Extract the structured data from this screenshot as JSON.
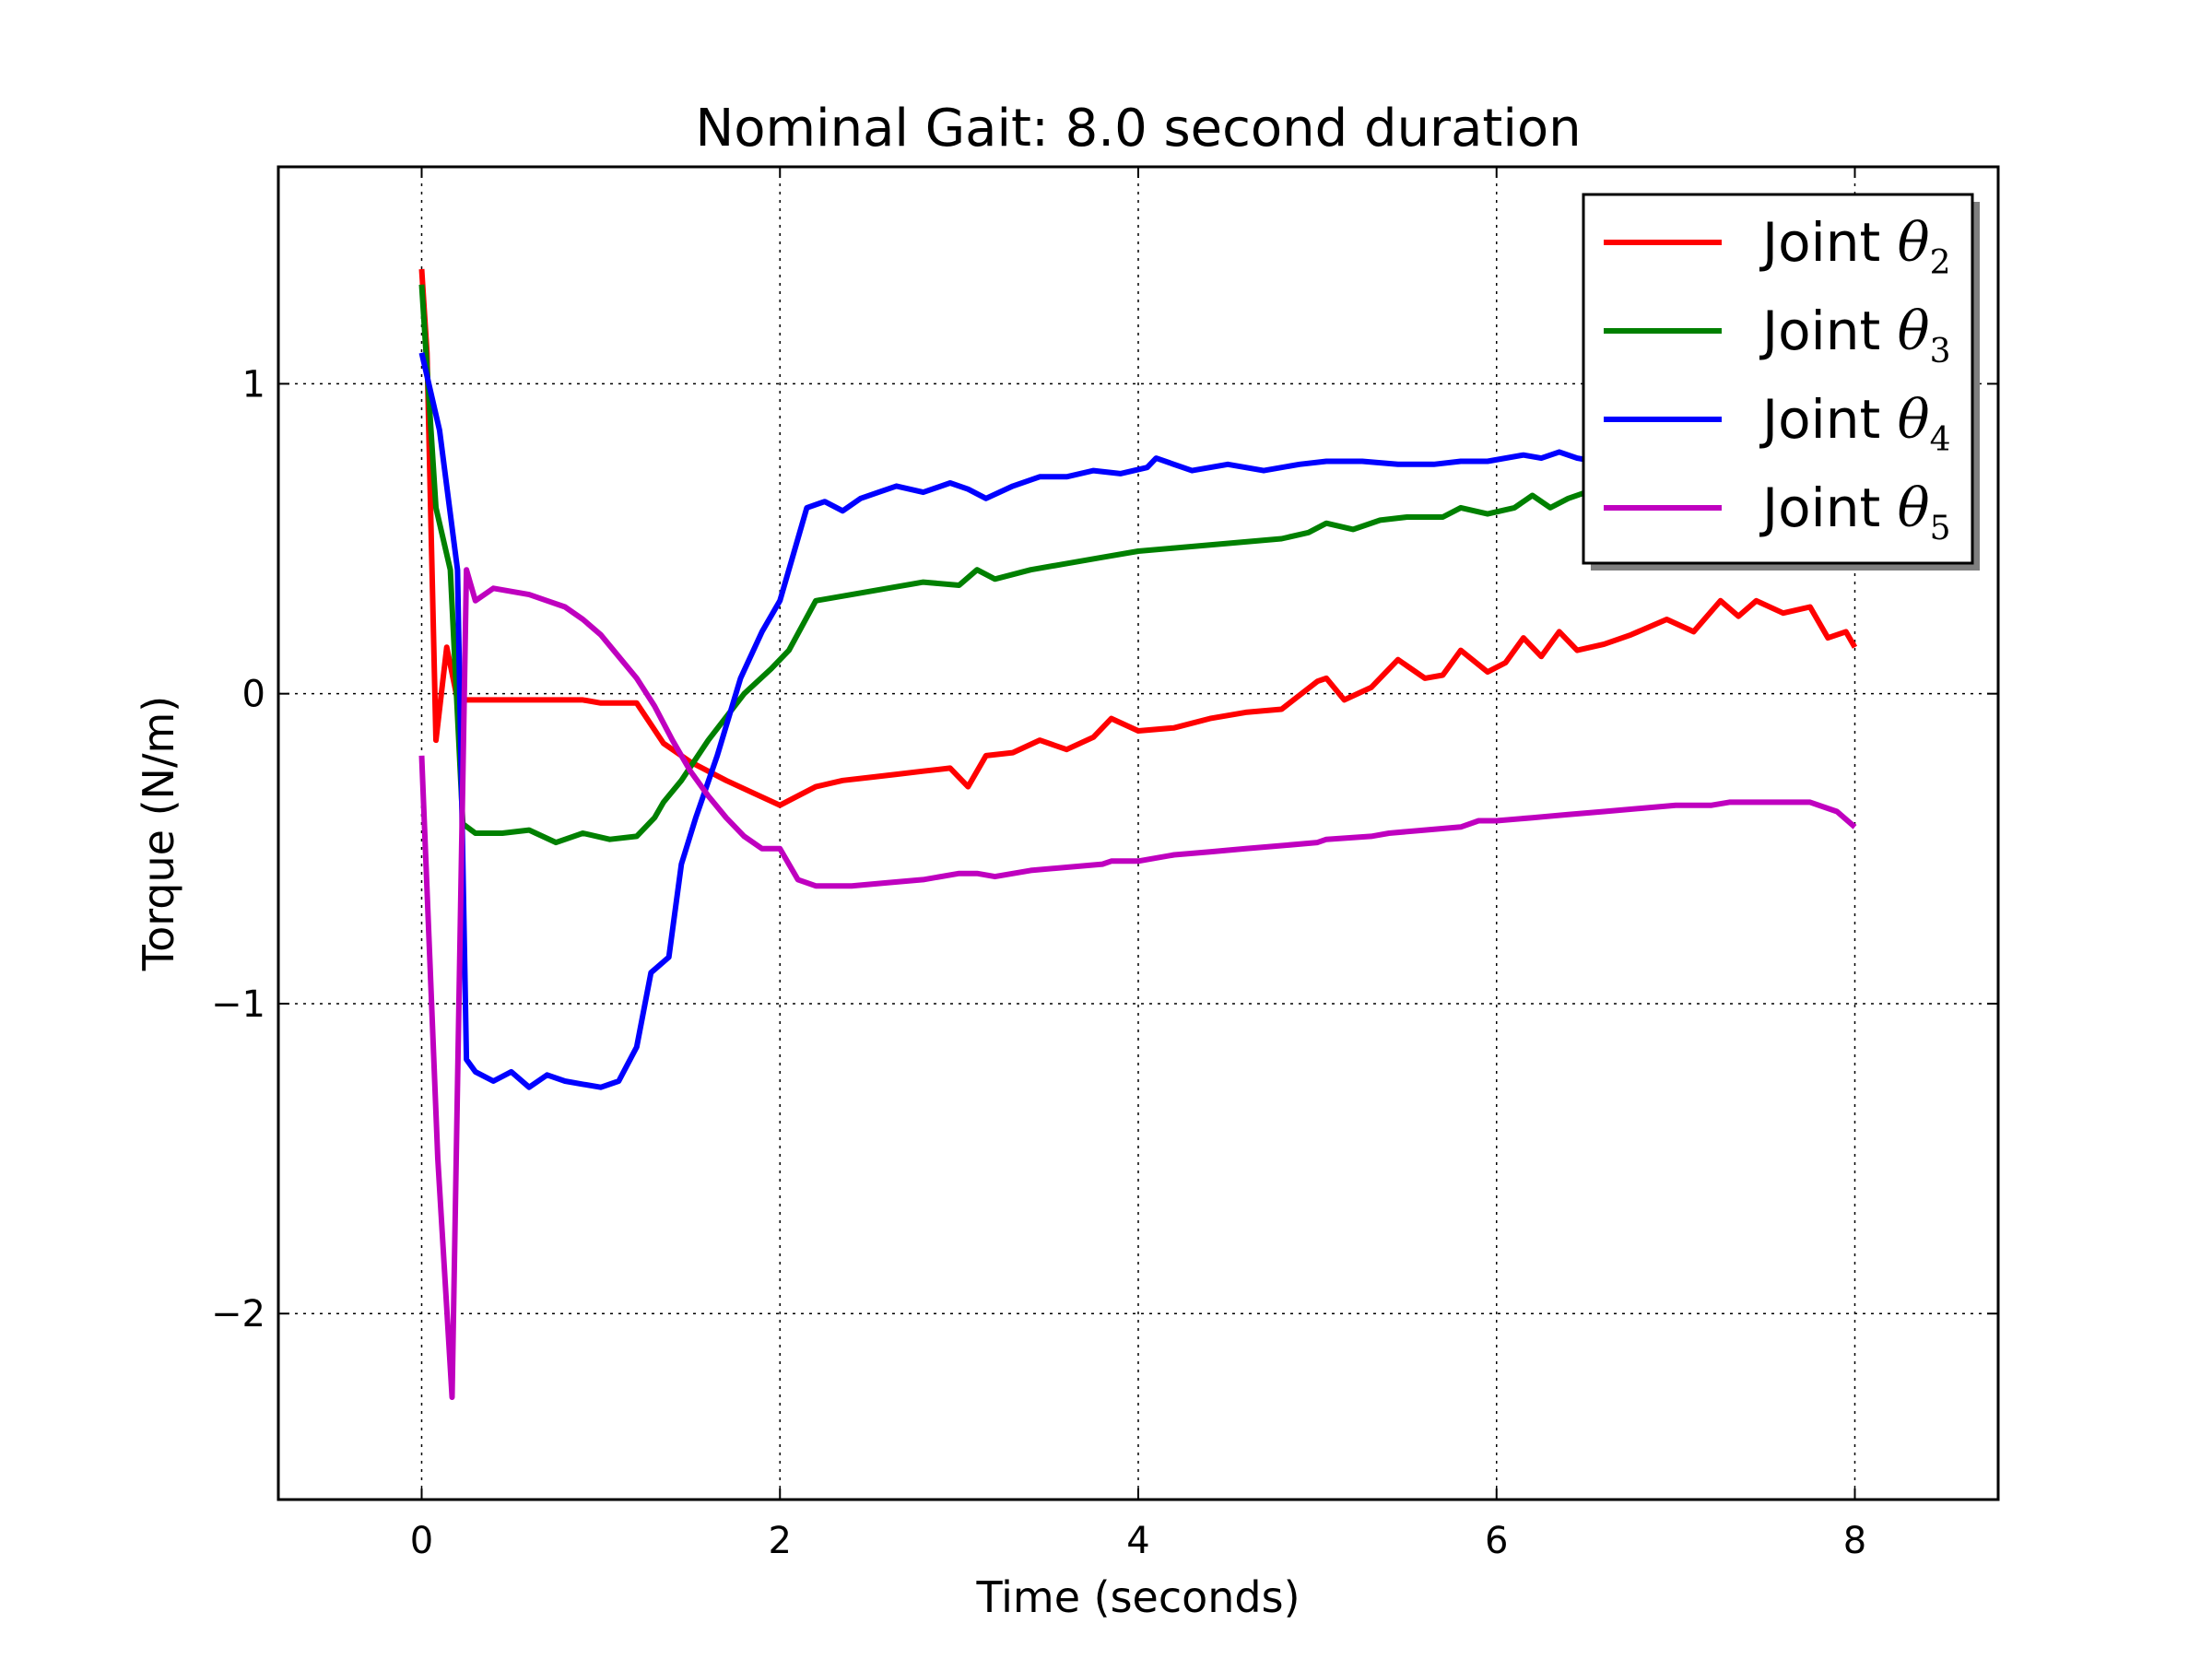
{
  "chart_data": {
    "type": "line",
    "title": "Nominal Gait: 8.0 second duration",
    "xlabel": "Time (seconds)",
    "ylabel": "Torque (N/m)",
    "xlim": [
      -0.8,
      8.8
    ],
    "ylim": [
      -2.6,
      1.7
    ],
    "xticks": [
      0,
      2,
      4,
      6,
      8
    ],
    "xtick_labels": [
      "0",
      "2",
      "4",
      "6",
      "8"
    ],
    "yticks": [
      1,
      0,
      -1,
      -2
    ],
    "ytick_labels": [
      "1",
      "0",
      "−1",
      "−2"
    ],
    "grid": true,
    "legend_position": "top-right",
    "series": [
      {
        "name": "Joint θ2",
        "legend_word": "Joint",
        "legend_symbol": "θ",
        "legend_subscript": "2",
        "color": "#ff0000",
        "x": [
          0,
          0.03,
          0.08,
          0.14,
          0.2,
          0.3,
          0.5,
          0.7,
          0.9,
          1.0,
          1.1,
          1.2,
          1.35,
          1.5,
          1.7,
          1.85,
          2.0,
          2.1,
          2.2,
          2.35,
          2.5,
          2.65,
          2.8,
          2.95,
          3.05,
          3.15,
          3.3,
          3.45,
          3.6,
          3.75,
          3.85,
          4.0,
          4.2,
          4.4,
          4.6,
          4.8,
          5.0,
          5.05,
          5.15,
          5.3,
          5.45,
          5.6,
          5.7,
          5.8,
          5.95,
          6.05,
          6.15,
          6.25,
          6.35,
          6.45,
          6.6,
          6.75,
          6.95,
          7.1,
          7.25,
          7.35,
          7.45,
          7.6,
          7.75,
          7.85,
          7.95,
          8.0
        ],
        "values": [
          1.37,
          1.1,
          -0.15,
          0.15,
          -0.02,
          -0.02,
          -0.02,
          -0.02,
          -0.02,
          -0.03,
          -0.03,
          -0.03,
          -0.16,
          -0.22,
          -0.28,
          -0.32,
          -0.36,
          -0.33,
          -0.3,
          -0.28,
          -0.27,
          -0.26,
          -0.25,
          -0.24,
          -0.3,
          -0.2,
          -0.19,
          -0.15,
          -0.18,
          -0.14,
          -0.08,
          -0.12,
          -0.11,
          -0.08,
          -0.06,
          -0.05,
          0.04,
          0.05,
          -0.02,
          0.02,
          0.11,
          0.05,
          0.06,
          0.14,
          0.07,
          0.1,
          0.18,
          0.12,
          0.2,
          0.14,
          0.16,
          0.19,
          0.24,
          0.2,
          0.3,
          0.25,
          0.3,
          0.26,
          0.28,
          0.18,
          0.2,
          0.15
        ]
      },
      {
        "name": "Joint θ3",
        "legend_word": "Joint",
        "legend_symbol": "θ",
        "legend_subscript": "3",
        "color": "#008000",
        "x": [
          0,
          0.08,
          0.16,
          0.23,
          0.3,
          0.45,
          0.6,
          0.75,
          0.9,
          1.05,
          1.2,
          1.3,
          1.35,
          1.45,
          1.6,
          1.8,
          1.95,
          2.05,
          2.2,
          2.4,
          2.6,
          2.8,
          3.0,
          3.1,
          3.2,
          3.4,
          3.6,
          3.8,
          4.0,
          4.2,
          4.4,
          4.6,
          4.8,
          4.95,
          5.05,
          5.2,
          5.35,
          5.5,
          5.7,
          5.8,
          5.95,
          6.1,
          6.2,
          6.3,
          6.4,
          6.55
        ],
        "values": [
          1.32,
          0.6,
          0.4,
          -0.42,
          -0.45,
          -0.45,
          -0.44,
          -0.48,
          -0.45,
          -0.47,
          -0.46,
          -0.4,
          -0.35,
          -0.28,
          -0.15,
          0.0,
          0.08,
          0.14,
          0.3,
          0.32,
          0.34,
          0.36,
          0.35,
          0.4,
          0.37,
          0.4,
          0.42,
          0.44,
          0.46,
          0.47,
          0.48,
          0.49,
          0.5,
          0.52,
          0.55,
          0.53,
          0.56,
          0.57,
          0.57,
          0.6,
          0.58,
          0.6,
          0.64,
          0.6,
          0.63,
          0.66
        ]
      },
      {
        "name": "Joint θ4",
        "legend_word": "Joint",
        "legend_symbol": "θ",
        "legend_subscript": "4",
        "color": "#0000ff",
        "x": [
          0,
          0.1,
          0.2,
          0.25,
          0.3,
          0.4,
          0.5,
          0.6,
          0.7,
          0.8,
          0.9,
          1.0,
          1.1,
          1.2,
          1.28,
          1.38,
          1.45,
          1.53,
          1.65,
          1.78,
          1.9,
          2.0,
          2.08,
          2.15,
          2.25,
          2.35,
          2.45,
          2.55,
          2.65,
          2.8,
          2.95,
          3.05,
          3.15,
          3.3,
          3.45,
          3.6,
          3.75,
          3.9,
          4.05,
          4.1,
          4.3,
          4.5,
          4.7,
          4.9,
          5.05,
          5.25,
          5.45,
          5.65,
          5.8,
          5.95,
          6.15,
          6.25,
          6.35,
          6.45,
          6.55
        ],
        "values": [
          1.1,
          0.85,
          0.4,
          -1.18,
          -1.22,
          -1.25,
          -1.22,
          -1.27,
          -1.23,
          -1.25,
          -1.26,
          -1.27,
          -1.25,
          -1.14,
          -0.9,
          -0.85,
          -0.55,
          -0.4,
          -0.2,
          0.05,
          0.2,
          0.3,
          0.46,
          0.6,
          0.62,
          0.59,
          0.63,
          0.65,
          0.67,
          0.65,
          0.68,
          0.66,
          0.63,
          0.67,
          0.7,
          0.7,
          0.72,
          0.71,
          0.73,
          0.76,
          0.72,
          0.74,
          0.72,
          0.74,
          0.75,
          0.75,
          0.74,
          0.74,
          0.75,
          0.75,
          0.77,
          0.76,
          0.78,
          0.76,
          0.75
        ]
      },
      {
        "name": "Joint θ5",
        "legend_word": "Joint",
        "legend_symbol": "θ",
        "legend_subscript": "5",
        "color": "#bf00bf",
        "x": [
          0,
          0.09,
          0.17,
          0.25,
          0.3,
          0.4,
          0.5,
          0.6,
          0.7,
          0.8,
          0.9,
          1.0,
          1.1,
          1.2,
          1.3,
          1.4,
          1.5,
          1.6,
          1.7,
          1.8,
          1.9,
          2.0,
          2.1,
          2.2,
          2.4,
          2.6,
          2.8,
          3.0,
          3.1,
          3.2,
          3.4,
          3.6,
          3.8,
          3.85,
          4.0,
          4.2,
          4.4,
          4.6,
          4.8,
          5.0,
          5.05,
          5.3,
          5.4,
          5.6,
          5.8,
          5.9,
          6.0,
          6.2,
          6.4,
          6.6,
          6.8,
          7.0,
          7.2,
          7.3,
          7.45,
          7.6,
          7.75,
          7.9,
          8.0
        ],
        "values": [
          -0.2,
          -1.5,
          -2.27,
          0.4,
          0.3,
          0.34,
          0.33,
          0.32,
          0.3,
          0.28,
          0.24,
          0.19,
          0.12,
          0.05,
          -0.04,
          -0.15,
          -0.25,
          -0.33,
          -0.4,
          -0.46,
          -0.5,
          -0.5,
          -0.6,
          -0.62,
          -0.62,
          -0.61,
          -0.6,
          -0.58,
          -0.58,
          -0.59,
          -0.57,
          -0.56,
          -0.55,
          -0.54,
          -0.54,
          -0.52,
          -0.51,
          -0.5,
          -0.49,
          -0.48,
          -0.47,
          -0.46,
          -0.45,
          -0.44,
          -0.43,
          -0.41,
          -0.41,
          -0.4,
          -0.39,
          -0.38,
          -0.37,
          -0.36,
          -0.36,
          -0.35,
          -0.35,
          -0.35,
          -0.35,
          -0.38,
          -0.43
        ]
      }
    ]
  }
}
